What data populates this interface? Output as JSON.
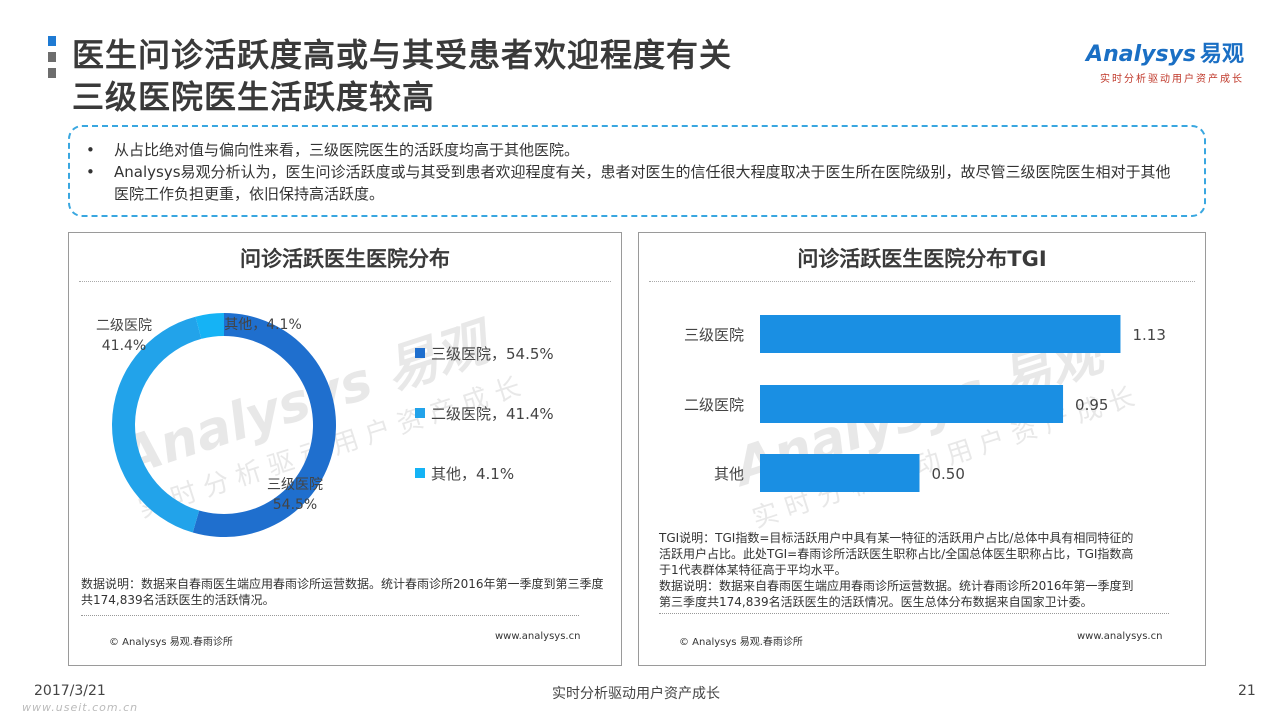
{
  "title": {
    "line1": "医生问诊活跃度高或与其受患者欢迎程度有关",
    "line2": "三级医院医生活跃度较高"
  },
  "logo": {
    "brand": "nalysys",
    "brand_mark": "A",
    "brand_cn": "易观",
    "tagline": "实时分析驱动用户资产成长"
  },
  "summary": {
    "bullets": [
      "从占比绝对值与偏向性来看，三级医院医生的活跃度均高于其他医院。",
      "Analysys易观分析认为，医生问诊活跃度或与其受到患者欢迎程度有关，患者对医生的信任很大程度取决于医生所在医院级别，故尽管三级医院医生相对于其他医院工作负担更重，依旧保持高活跃度。"
    ]
  },
  "watermark": {
    "brand": "Analysys 易观",
    "tagline": "实时分析驱动用户资产成长"
  },
  "left_panel": {
    "title": "问诊活跃医生医院分布",
    "note": "数据说明：数据来自春雨医生端应用春雨诊所运营数据。统计春雨诊所2016年第一季度到第三季度共174,839名活跃医生的活跃情况。",
    "copyright": "© Analysys 易观.春雨诊所",
    "site": "www.analysys.cn"
  },
  "right_panel": {
    "title": "问诊活跃医生医院分布TGI",
    "note_lines": [
      "TGI说明：TGI指数=目标活跃用户中具有某一特征的活跃用户占比/总体中具有相同特征的",
      "活跃用户占比。此处TGI=春雨诊所活跃医生职称占比/全国总体医生职称占比，TGI指数高",
      "于1代表群体某特征高于平均水平。",
      "数据说明：数据来自春雨医生端应用春雨诊所运营数据。统计春雨诊所2016年第一季度到",
      "第三季度共174,839名活跃医生的活跃情况。医生总体分布数据来自国家卫计委。"
    ],
    "copyright": "© Analysys 易观.春雨诊所",
    "site": "www.analysys.cn"
  },
  "chart_data": [
    {
      "type": "pie",
      "title": "问诊活跃医生医院分布",
      "donut": true,
      "categories": [
        "三级医院",
        "二级医院",
        "其他"
      ],
      "values": [
        54.5,
        41.4,
        4.1
      ],
      "value_labels": [
        "54.5%",
        "41.4%",
        "4.1%"
      ],
      "legend_labels": [
        "三级医院，54.5%",
        "二级医院，41.4%",
        "其他，4.1%"
      ],
      "colors": [
        "#1f6fce",
        "#22a3ea",
        "#15b3f5"
      ],
      "legend": "right"
    },
    {
      "type": "bar",
      "orientation": "horizontal",
      "title": "问诊活跃医生医院分布TGI",
      "categories": [
        "三级医院",
        "二级医院",
        "其他"
      ],
      "values": [
        1.13,
        0.95,
        0.5
      ],
      "value_labels": [
        "1.13",
        "0.95",
        "0.50"
      ],
      "xlim": [
        0,
        1.3
      ],
      "color": "#1a8fe3",
      "grid": false
    }
  ],
  "footer": {
    "date": "2017/3/21",
    "slogan": "实时分析驱动用户资产成长",
    "page": "21",
    "source_wm": "www.useit.com.cn"
  }
}
